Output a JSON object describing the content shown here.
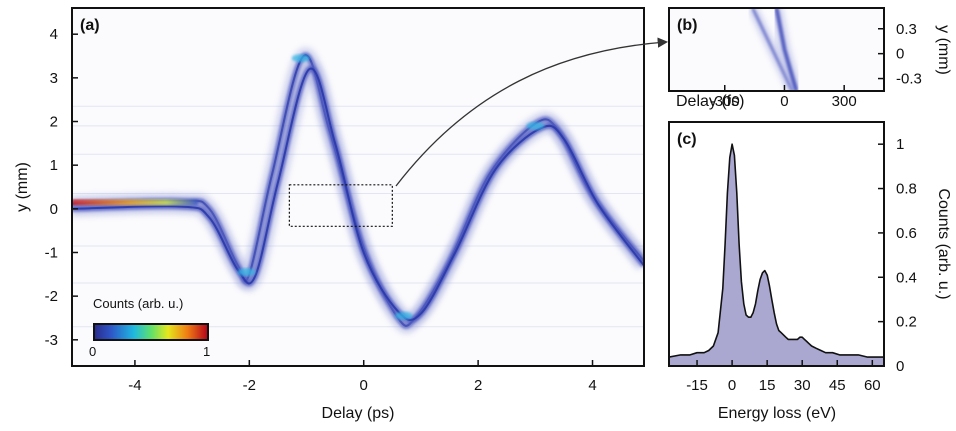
{
  "chart_data": [
    {
      "panel": "(a)",
      "type": "heatmap",
      "xlabel": "Delay (ps)",
      "ylabel": "y (mm)",
      "xlim": [
        -5.1,
        4.9
      ],
      "ylim": [
        -3.6,
        4.6
      ],
      "xticks": [
        -4,
        -2,
        0,
        2,
        4
      ],
      "xtick_labels": [
        "-4",
        "-2",
        "0",
        "2",
        "4"
      ],
      "yticks": [
        -3,
        -2,
        -1,
        0,
        1,
        2,
        3,
        4
      ],
      "ytick_labels": [
        "-3",
        "-2",
        "-1",
        "0",
        "1",
        "2",
        "3",
        "4"
      ],
      "colormap": "jet",
      "colorbar": {
        "label": "Counts (arb. u.)",
        "min_label": "0",
        "max_label": "1"
      },
      "traces": [
        {
          "delay": [
            -5.1,
            -3.2,
            -2.7,
            -2.2,
            -2.0,
            -1.6,
            -1.05,
            -0.6,
            0.0,
            0.6,
            0.9,
            1.5,
            2.2,
            3.0,
            3.4,
            4.0,
            4.9
          ],
          "y": [
            0.12,
            0.18,
            0.0,
            -1.3,
            -1.5,
            0.8,
            3.5,
            1.8,
            -0.9,
            -2.5,
            -2.5,
            -1.2,
            0.8,
            1.95,
            1.8,
            0.3,
            -1.2
          ]
        },
        {
          "delay": [
            -5.1,
            -3.2,
            -2.7,
            -2.2,
            -1.9,
            -1.5,
            -0.95,
            -0.5,
            0.0,
            0.6,
            1.0,
            1.6,
            2.3,
            3.1,
            3.5,
            4.1,
            4.9
          ],
          "y": [
            0.0,
            0.05,
            -0.2,
            -1.4,
            -1.55,
            0.6,
            3.2,
            1.5,
            -1.0,
            -2.35,
            -2.4,
            -1.0,
            0.9,
            1.85,
            1.6,
            0.1,
            -1.3
          ]
        }
      ],
      "inset_box": {
        "delay": [
          -1.3,
          0.5
        ],
        "y": [
          -0.4,
          0.55
        ]
      },
      "grid": false
    },
    {
      "panel": "(b)",
      "type": "heatmap",
      "xlabel": "Delay (fs)",
      "ylabel": "y (mm)",
      "xlim": [
        -580,
        500
      ],
      "ylim": [
        -0.45,
        0.55
      ],
      "xticks": [
        -300,
        0,
        300
      ],
      "xtick_labels": [
        "-300",
        "0",
        "300"
      ],
      "yticks": [
        -0.3,
        0,
        0.3
      ],
      "ytick_labels": [
        "-0.3",
        "0",
        "0.3"
      ],
      "traces": [
        {
          "delay": [
            -160,
            -60,
            40
          ],
          "y": [
            0.55,
            0.05,
            -0.45
          ]
        },
        {
          "delay": [
            -40,
            0,
            60
          ],
          "y": [
            0.55,
            0.05,
            -0.45
          ]
        }
      ],
      "grid": false
    },
    {
      "panel": "(c)",
      "type": "area",
      "xlabel": "Energy loss (eV)",
      "ylabel": "Counts (arb. u.)",
      "xlim": [
        -27,
        65
      ],
      "ylim": [
        0,
        1.1
      ],
      "xticks": [
        -15,
        0,
        15,
        30,
        45,
        60
      ],
      "xtick_labels": [
        "-15",
        "0",
        "15",
        "30",
        "45",
        "60"
      ],
      "yticks": [
        0,
        0.2,
        0.4,
        0.6,
        0.8,
        1
      ],
      "ytick_labels": [
        "0",
        "0.2",
        "0.4",
        "0.6",
        "0.8",
        "1"
      ],
      "fill_color": "#aaa8d0",
      "line_color": "#111111",
      "x": [
        -27,
        -22,
        -18,
        -15,
        -12,
        -10,
        -8,
        -6,
        -4,
        -3,
        -2,
        -1,
        0,
        1,
        2,
        3,
        4,
        5,
        6,
        7,
        8,
        9,
        10,
        11,
        12,
        13,
        14,
        15,
        16,
        17,
        18,
        19,
        20,
        21,
        22,
        23,
        24,
        25,
        26,
        27,
        28,
        29,
        30,
        31,
        32,
        33,
        34,
        36,
        38,
        40,
        43,
        46,
        50,
        54,
        58,
        62,
        65
      ],
      "y": [
        0.04,
        0.05,
        0.05,
        0.06,
        0.06,
        0.07,
        0.09,
        0.15,
        0.35,
        0.55,
        0.78,
        0.94,
        1.0,
        0.95,
        0.78,
        0.55,
        0.38,
        0.28,
        0.23,
        0.22,
        0.22,
        0.24,
        0.28,
        0.34,
        0.39,
        0.42,
        0.43,
        0.41,
        0.36,
        0.3,
        0.24,
        0.19,
        0.16,
        0.15,
        0.14,
        0.13,
        0.12,
        0.12,
        0.12,
        0.12,
        0.12,
        0.13,
        0.13,
        0.12,
        0.11,
        0.1,
        0.09,
        0.08,
        0.07,
        0.06,
        0.06,
        0.05,
        0.05,
        0.05,
        0.04,
        0.04,
        0.04
      ]
    }
  ]
}
